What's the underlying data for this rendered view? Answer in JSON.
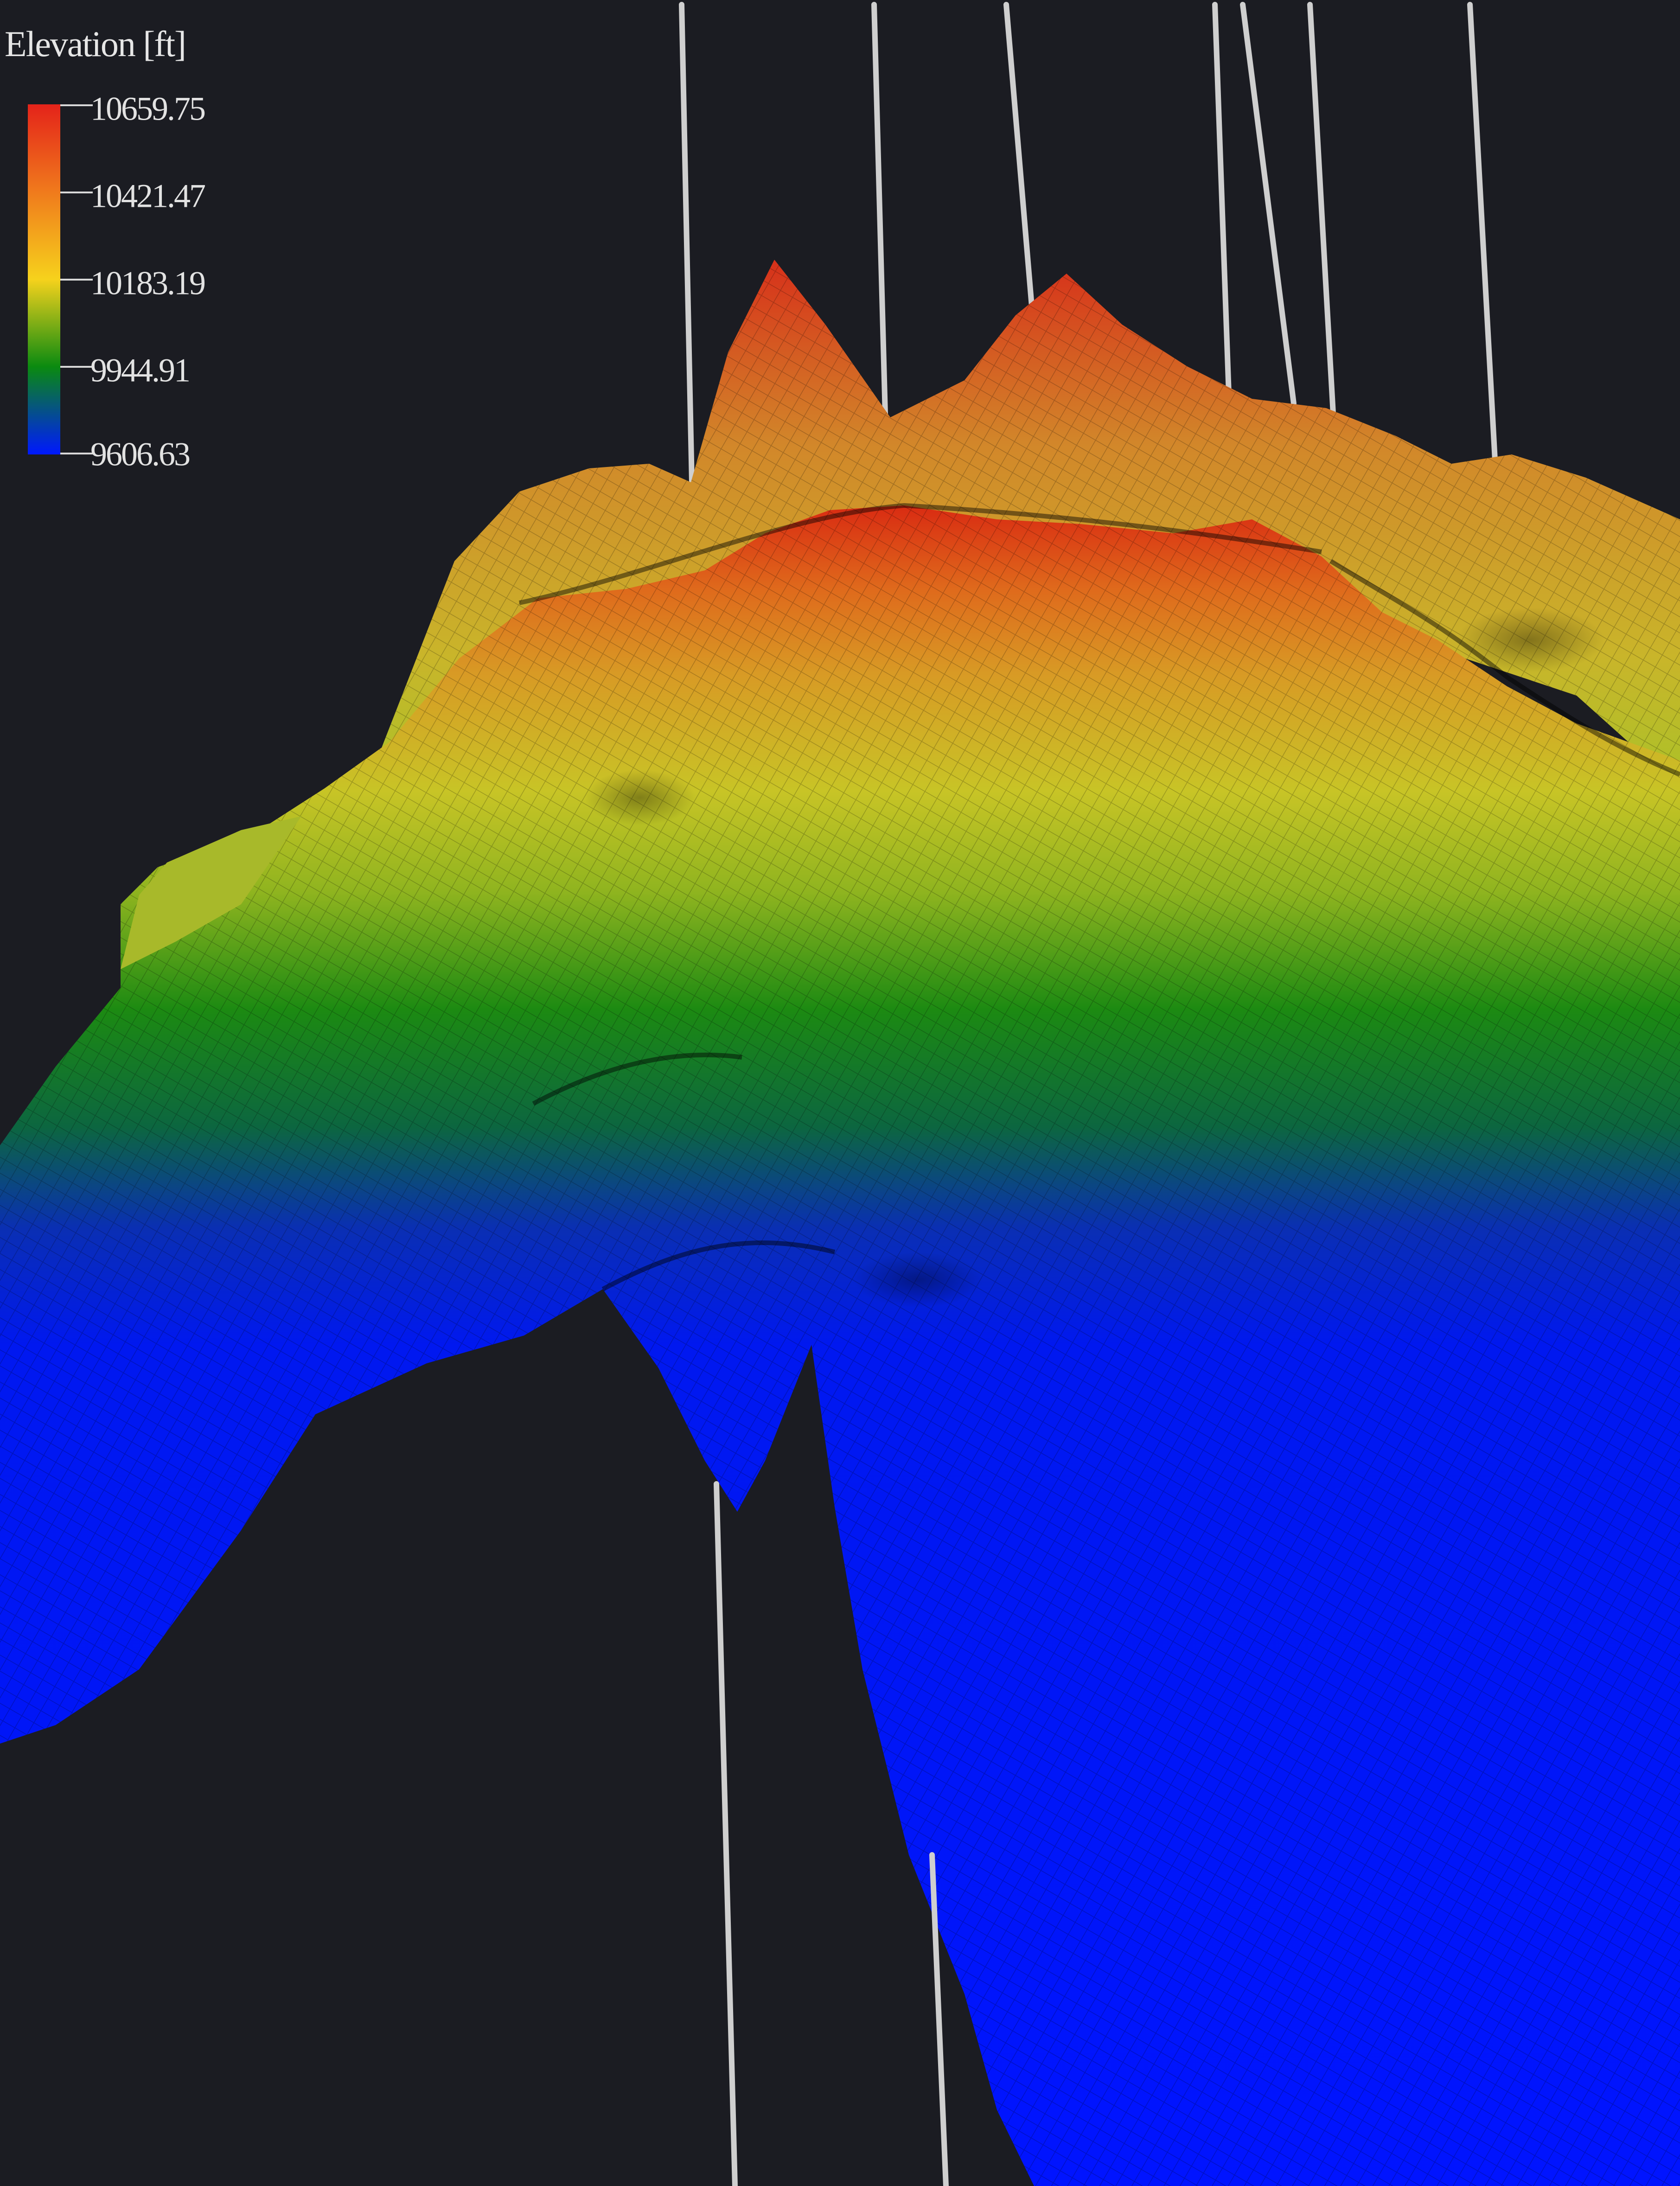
{
  "legend": {
    "title": "Elevation [ft]",
    "gradient_colors": [
      "#e4231a",
      "#f07a1c",
      "#f6d21c",
      "#0a8a10",
      "#0018ff"
    ],
    "labels": [
      "10659.75",
      "10421.47",
      "10183.19",
      "9944.91",
      "9606.63"
    ]
  },
  "scene": {
    "background": "#1b1c22",
    "well_color": "#cfcfcf"
  }
}
